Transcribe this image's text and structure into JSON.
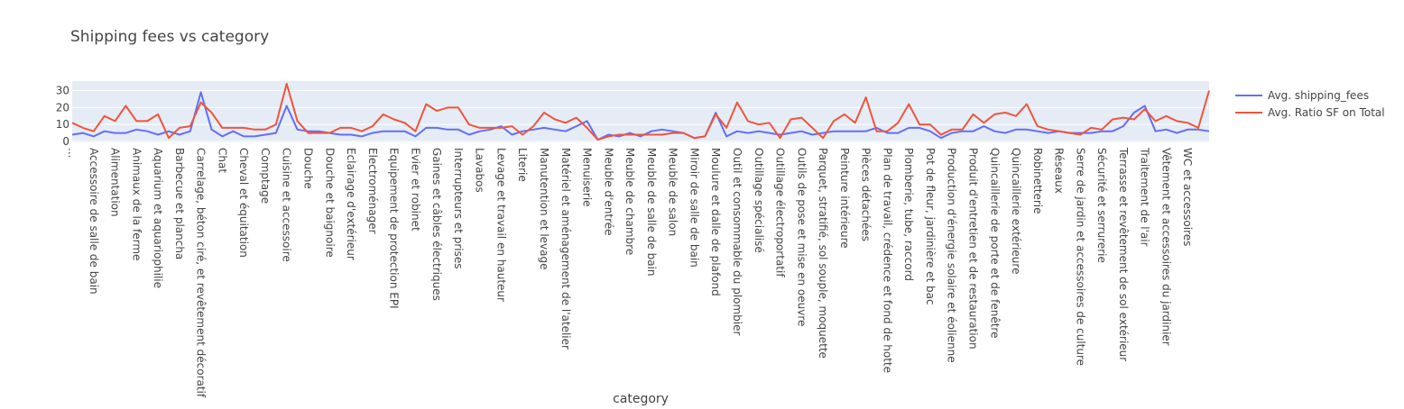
{
  "chart_data": {
    "type": "line",
    "title": "Shipping fees vs category",
    "xlabel": "category",
    "ylabel": "",
    "ylim": [
      0,
      34
    ],
    "yticks": [
      0,
      10,
      20,
      30
    ],
    "grid": true,
    "legend_position": "top-right",
    "colors": {
      "plot_bg": "#e5ecf6",
      "grid": "#ffffff",
      "text": "#444444"
    },
    "tick_labels": [
      {
        "idx": 0,
        "text": "..."
      },
      {
        "idx": 2,
        "text": "Accessoire de salle de bain"
      },
      {
        "idx": 4,
        "text": "Alimentation"
      },
      {
        "idx": 6,
        "text": "Animaux de la ferme"
      },
      {
        "idx": 8,
        "text": "Aquarium et aquariophilie"
      },
      {
        "idx": 10,
        "text": "Barbecue et plancha"
      },
      {
        "idx": 12,
        "text": "Carrelage, béton ciré, et revêtement décoratif"
      },
      {
        "idx": 14,
        "text": "Chat"
      },
      {
        "idx": 16,
        "text": "Cheval et équitation"
      },
      {
        "idx": 18,
        "text": "Comptage"
      },
      {
        "idx": 20,
        "text": "Cuisine et accessoire"
      },
      {
        "idx": 22,
        "text": "Douche"
      },
      {
        "idx": 24,
        "text": "Douche et baignoire"
      },
      {
        "idx": 26,
        "text": "Eclairage d'extérieur"
      },
      {
        "idx": 28,
        "text": "Electroménager"
      },
      {
        "idx": 30,
        "text": "Equipement de protection EPI"
      },
      {
        "idx": 32,
        "text": "Evier et robinet"
      },
      {
        "idx": 34,
        "text": "Gaines et câbles électriques"
      },
      {
        "idx": 36,
        "text": "Interrupteurs et prises"
      },
      {
        "idx": 38,
        "text": "Lavabos"
      },
      {
        "idx": 40,
        "text": "Levage et travail en hauteur"
      },
      {
        "idx": 42,
        "text": "Literie"
      },
      {
        "idx": 44,
        "text": "Manutention et levage"
      },
      {
        "idx": 46,
        "text": "Matériel et aménagement de l'atelier"
      },
      {
        "idx": 48,
        "text": "Menuiserie"
      },
      {
        "idx": 50,
        "text": "Meuble d'entrée"
      },
      {
        "idx": 52,
        "text": "Meuble de chambre"
      },
      {
        "idx": 54,
        "text": "Meuble de salle de bain"
      },
      {
        "idx": 56,
        "text": "Meuble de salon"
      },
      {
        "idx": 58,
        "text": "Miroir de salle de bain"
      },
      {
        "idx": 60,
        "text": "Moulure et dalle de plafond"
      },
      {
        "idx": 62,
        "text": "Outil et consommable du plombier"
      },
      {
        "idx": 64,
        "text": "Outillage spécialisé"
      },
      {
        "idx": 66,
        "text": "Outillage électroportatif"
      },
      {
        "idx": 68,
        "text": "Outils de pose et mise en oeuvre"
      },
      {
        "idx": 70,
        "text": "Parquet, stratifié, sol souple, moquette"
      },
      {
        "idx": 72,
        "text": "Peinture intérieure"
      },
      {
        "idx": 74,
        "text": "Pièces détachées"
      },
      {
        "idx": 76,
        "text": "Plan de travail, crédence et fond de hotte"
      },
      {
        "idx": 78,
        "text": "Plomberie, tube, raccord"
      },
      {
        "idx": 80,
        "text": "Pot de fleur, jardinière et bac"
      },
      {
        "idx": 82,
        "text": "Production d'énergie solaire et éolienne"
      },
      {
        "idx": 84,
        "text": "Produit d'entretien et de restauration"
      },
      {
        "idx": 86,
        "text": "Quincaillerie de porte et de fenêtre"
      },
      {
        "idx": 88,
        "text": "Quincaillerie extérieure"
      },
      {
        "idx": 90,
        "text": "Robinetterie"
      },
      {
        "idx": 92,
        "text": "Réseaux"
      },
      {
        "idx": 94,
        "text": "Serre de jardin et accessoires de culture"
      },
      {
        "idx": 96,
        "text": "Sécurité et serrurerie"
      },
      {
        "idx": 98,
        "text": "Terrasse et revêtement de sol extérieur"
      },
      {
        "idx": 100,
        "text": "Traitement de l'air"
      },
      {
        "idx": 102,
        "text": "Vêtement et accessoires du jardinier"
      },
      {
        "idx": 104,
        "text": "WC et accessoires"
      }
    ],
    "series": [
      {
        "name": "Avg. shipping_fees",
        "color": "#636efa",
        "values": [
          4,
          5,
          3,
          6,
          5,
          5,
          7,
          6,
          4,
          6,
          4,
          6,
          29,
          7,
          3,
          6,
          3,
          3,
          4,
          5,
          21,
          7,
          6,
          6,
          5,
          4,
          4,
          3,
          5,
          6,
          6,
          6,
          3,
          8,
          8,
          7,
          7,
          4,
          6,
          7,
          9,
          4,
          6,
          7,
          8,
          7,
          6,
          9,
          12,
          1,
          4,
          3,
          5,
          3,
          6,
          7,
          6,
          5,
          2,
          3,
          17,
          3,
          6,
          5,
          6,
          5,
          4,
          5,
          6,
          4,
          5,
          6,
          6,
          6,
          6,
          8,
          5,
          5,
          8,
          8,
          6,
          2,
          5,
          6,
          6,
          9,
          6,
          5,
          7,
          7,
          6,
          5,
          6,
          5,
          5,
          5,
          6,
          6,
          9,
          17,
          21,
          6,
          7,
          5,
          7,
          7,
          6
        ]
      },
      {
        "name": "Avg. Ratio SF on Total",
        "color": "#ef553b",
        "values": [
          11,
          8,
          6,
          15,
          12,
          21,
          12,
          12,
          16,
          2,
          8,
          9,
          23,
          17,
          8,
          8,
          8,
          7,
          7,
          10,
          34,
          12,
          5,
          5,
          5,
          8,
          8,
          6,
          9,
          16,
          13,
          11,
          6,
          22,
          18,
          20,
          20,
          10,
          8,
          8,
          8,
          9,
          4,
          9,
          17,
          13,
          11,
          14,
          8,
          1,
          3,
          4,
          4,
          4,
          4,
          4,
          5,
          5,
          2,
          3,
          16,
          8,
          23,
          12,
          10,
          11,
          2,
          13,
          14,
          8,
          2,
          12,
          16,
          11,
          26,
          6,
          6,
          11,
          22,
          10,
          10,
          4,
          7,
          7,
          16,
          11,
          16,
          17,
          15,
          22,
          9,
          7,
          6,
          5,
          4,
          8,
          7,
          13,
          14,
          13,
          19,
          12,
          15,
          12,
          11,
          8,
          30
        ]
      }
    ]
  }
}
